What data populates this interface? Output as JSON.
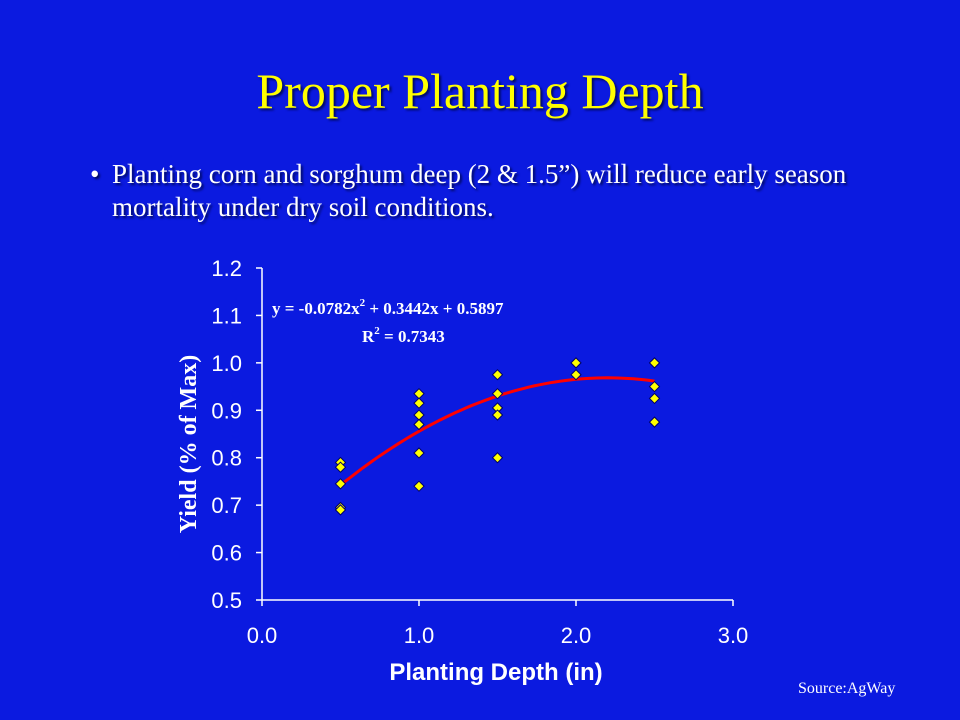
{
  "slide": {
    "title": "Proper Planting Depth",
    "bullet_symbol": "•",
    "bullet": "Planting corn and sorghum deep (2 & 1.5”) will reduce early season mortality under dry soil conditions.",
    "source": "Source:AgWay"
  },
  "chart_data": {
    "type": "scatter",
    "xlabel": "Planting Depth (in)",
    "ylabel": "Yield (% of Max)",
    "xlim": [
      0.0,
      3.0
    ],
    "ylim": [
      0.5,
      1.2
    ],
    "x_ticks": [
      "0.0",
      "1.0",
      "2.0",
      "3.0"
    ],
    "y_ticks": [
      "0.5",
      "0.6",
      "0.7",
      "0.8",
      "0.9",
      "1.0",
      "1.1",
      "1.2"
    ],
    "points": [
      {
        "x": 0.5,
        "y": 0.79
      },
      {
        "x": 0.5,
        "y": 0.78
      },
      {
        "x": 0.5,
        "y": 0.745
      },
      {
        "x": 0.5,
        "y": 0.695
      },
      {
        "x": 0.5,
        "y": 0.69
      },
      {
        "x": 1.0,
        "y": 0.935
      },
      {
        "x": 1.0,
        "y": 0.915
      },
      {
        "x": 1.0,
        "y": 0.89
      },
      {
        "x": 1.0,
        "y": 0.87
      },
      {
        "x": 1.0,
        "y": 0.81
      },
      {
        "x": 1.0,
        "y": 0.74
      },
      {
        "x": 1.5,
        "y": 0.975
      },
      {
        "x": 1.5,
        "y": 0.935
      },
      {
        "x": 1.5,
        "y": 0.905
      },
      {
        "x": 1.5,
        "y": 0.89
      },
      {
        "x": 1.5,
        "y": 0.8
      },
      {
        "x": 2.0,
        "y": 1.0
      },
      {
        "x": 2.0,
        "y": 0.975
      },
      {
        "x": 2.5,
        "y": 1.0
      },
      {
        "x": 2.5,
        "y": 0.95
      },
      {
        "x": 2.5,
        "y": 0.925
      },
      {
        "x": 2.5,
        "y": 0.875
      }
    ],
    "trendline": {
      "type": "polynomial",
      "coefficients": [
        -0.0782,
        0.3442,
        0.5897
      ],
      "x_range": [
        0.5,
        2.5
      ],
      "equation_label": {
        "prefix": "y = -0.0782x",
        "exp": "2",
        "suffix": " + 0.3442x + 0.5897"
      },
      "r2_label": {
        "prefix": "R",
        "exp": "2",
        "suffix": " = 0.7343"
      }
    },
    "colors": {
      "background": "#0b1ae0",
      "axis": "#ffffff",
      "marker_fill": "#ffff00",
      "marker_stroke": "#000066",
      "trendline": "#ff0000",
      "equation_text": "#ffffff",
      "axis_label": "#ffffff"
    }
  }
}
